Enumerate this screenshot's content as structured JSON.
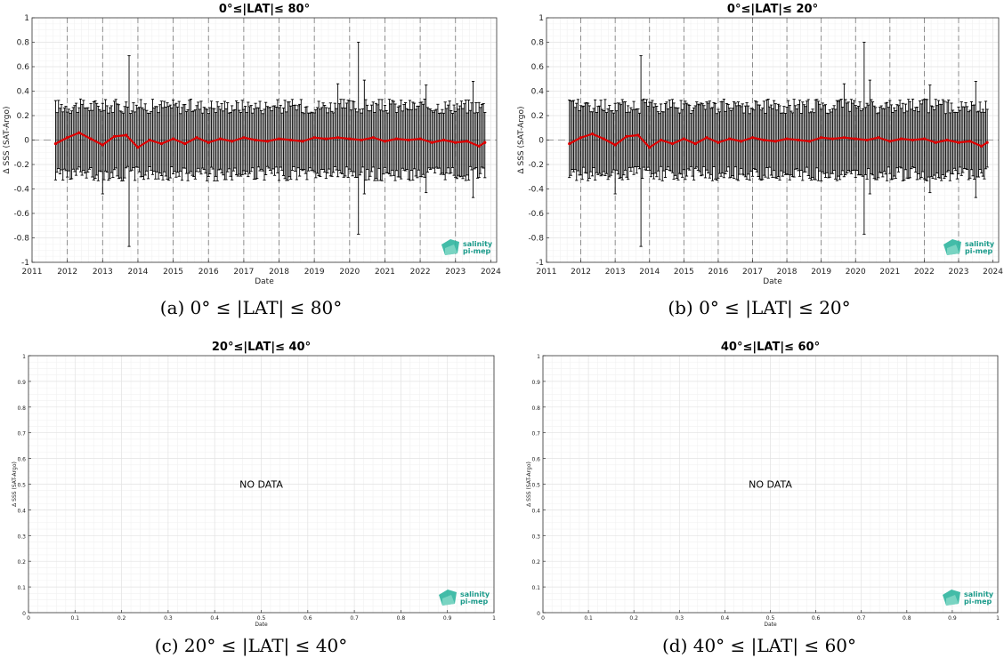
{
  "chart_data": [
    {
      "id": "a",
      "type": "line",
      "title": "0°≤|LAT|≤ 80°",
      "caption": "(a) 0° ≤ |LAT| ≤ 80°",
      "xlabel": "Date",
      "ylabel": "Δ SSS (SAT-Argo)",
      "xlim": [
        "2011-01-01",
        "2024-03-01"
      ],
      "ylim": [
        -1,
        1
      ],
      "xticks": [
        "2011",
        "2012",
        "2013",
        "2014",
        "2015",
        "2016",
        "2017",
        "2018",
        "2019",
        "2020",
        "2021",
        "2022",
        "2023",
        "2024"
      ],
      "yticks": [
        "-1",
        "-0.8",
        "-0.6",
        "-0.4",
        "-0.2",
        "0",
        "0.2",
        "0.4",
        "0.6",
        "0.8",
        "1"
      ],
      "grid": true,
      "series": [
        {
          "type": "errorbar",
          "color": "#000000",
          "start": "2011-09",
          "end": "2023-11",
          "typical_upper": 0.27,
          "typical_lower": -0.27,
          "outliers": [
            {
              "date": "2013-10",
              "upper": 0.69,
              "lower": -0.87
            },
            {
              "date": "2020-04",
              "upper": 0.8,
              "lower": -0.77
            },
            {
              "date": "2013-01",
              "upper": 0.3,
              "lower": -0.44
            },
            {
              "date": "2020-06",
              "upper": 0.49,
              "lower": -0.44
            },
            {
              "date": "2023-07",
              "upper": 0.48,
              "lower": -0.47
            },
            {
              "date": "2019-09",
              "upper": 0.46,
              "lower": -0.3
            },
            {
              "date": "2022-03",
              "upper": 0.45,
              "lower": -0.43
            }
          ]
        },
        {
          "type": "line",
          "color": "#dd0000",
          "x": [
            "2011-09",
            "2012-01",
            "2012-05",
            "2012-09",
            "2013-01",
            "2013-05",
            "2013-09",
            "2014-01",
            "2014-05",
            "2014-09",
            "2015-01",
            "2015-05",
            "2015-09",
            "2016-01",
            "2016-05",
            "2016-09",
            "2017-01",
            "2017-05",
            "2017-09",
            "2018-01",
            "2018-05",
            "2018-09",
            "2019-01",
            "2019-05",
            "2019-09",
            "2020-01",
            "2020-05",
            "2020-09",
            "2021-01",
            "2021-05",
            "2021-09",
            "2022-01",
            "2022-05",
            "2022-09",
            "2023-01",
            "2023-05",
            "2023-09",
            "2023-11"
          ],
          "y": [
            -0.03,
            0.02,
            0.06,
            0.01,
            -0.04,
            0.03,
            0.04,
            -0.06,
            0.0,
            -0.03,
            0.01,
            -0.03,
            0.02,
            -0.02,
            0.01,
            -0.01,
            0.02,
            0.0,
            -0.01,
            0.01,
            0.0,
            -0.01,
            0.02,
            0.01,
            0.02,
            0.01,
            0.0,
            0.02,
            -0.01,
            0.01,
            0.0,
            0.01,
            -0.02,
            0.0,
            -0.02,
            -0.01,
            -0.05,
            -0.02
          ]
        }
      ],
      "logo": {
        "line1": "salinity",
        "line2": "pi-mep"
      }
    },
    {
      "id": "b",
      "type": "line",
      "title": "0°≤|LAT|≤ 20°",
      "caption": "(b) 0° ≤ |LAT| ≤ 20°",
      "xlabel": "Date",
      "ylabel": "Δ SSS (SAT-Argo)",
      "xlim": [
        "2011-01-01",
        "2024-03-01"
      ],
      "ylim": [
        -1,
        1
      ],
      "xticks": [
        "2011",
        "2012",
        "2013",
        "2014",
        "2015",
        "2016",
        "2017",
        "2018",
        "2019",
        "2020",
        "2021",
        "2022",
        "2023",
        "2024"
      ],
      "yticks": [
        "-1",
        "-0.8",
        "-0.6",
        "-0.4",
        "-0.2",
        "0",
        "0.2",
        "0.4",
        "0.6",
        "0.8",
        "1"
      ],
      "grid": true,
      "series": [
        {
          "type": "errorbar",
          "color": "#000000",
          "start": "2011-09",
          "end": "2023-11",
          "typical_upper": 0.27,
          "typical_lower": -0.27,
          "outliers": [
            {
              "date": "2013-10",
              "upper": 0.69,
              "lower": -0.87
            },
            {
              "date": "2020-04",
              "upper": 0.8,
              "lower": -0.77
            },
            {
              "date": "2013-01",
              "upper": 0.3,
              "lower": -0.44
            },
            {
              "date": "2020-06",
              "upper": 0.49,
              "lower": -0.44
            },
            {
              "date": "2023-07",
              "upper": 0.48,
              "lower": -0.47
            },
            {
              "date": "2019-09",
              "upper": 0.46,
              "lower": -0.3
            },
            {
              "date": "2022-03",
              "upper": 0.45,
              "lower": -0.43
            }
          ]
        },
        {
          "type": "line",
          "color": "#dd0000",
          "x": [
            "2011-09",
            "2012-01",
            "2012-05",
            "2012-09",
            "2013-01",
            "2013-05",
            "2013-09",
            "2014-01",
            "2014-05",
            "2014-09",
            "2015-01",
            "2015-05",
            "2015-09",
            "2016-01",
            "2016-05",
            "2016-09",
            "2017-01",
            "2017-05",
            "2017-09",
            "2018-01",
            "2018-05",
            "2018-09",
            "2019-01",
            "2019-05",
            "2019-09",
            "2020-01",
            "2020-05",
            "2020-09",
            "2021-01",
            "2021-05",
            "2021-09",
            "2022-01",
            "2022-05",
            "2022-09",
            "2023-01",
            "2023-05",
            "2023-09",
            "2023-11"
          ],
          "y": [
            -0.03,
            0.02,
            0.05,
            0.01,
            -0.04,
            0.03,
            0.04,
            -0.06,
            0.0,
            -0.03,
            0.01,
            -0.03,
            0.02,
            -0.02,
            0.01,
            -0.01,
            0.02,
            0.0,
            -0.01,
            0.01,
            0.0,
            -0.01,
            0.02,
            0.01,
            0.02,
            0.01,
            0.0,
            0.02,
            -0.01,
            0.01,
            0.0,
            0.01,
            -0.02,
            0.0,
            -0.02,
            -0.01,
            -0.05,
            -0.02
          ]
        }
      ],
      "logo": {
        "line1": "salinity",
        "line2": "pi-mep"
      }
    },
    {
      "id": "c",
      "type": "line",
      "title": "20°≤|LAT|≤ 40°",
      "caption": "(c) 20° ≤ |LAT| ≤ 40°",
      "xlabel": "Date",
      "ylabel": "Δ SSS (SAT-Argo)",
      "xlim": [
        0,
        1
      ],
      "ylim": [
        0,
        1
      ],
      "xticks": [
        "0",
        "0.1",
        "0.2",
        "0.3",
        "0.4",
        "0.5",
        "0.6",
        "0.7",
        "0.8",
        "0.9",
        "1"
      ],
      "yticks": [
        "0",
        "0.1",
        "0.2",
        "0.3",
        "0.4",
        "0.5",
        "0.6",
        "0.7",
        "0.8",
        "0.9",
        "1"
      ],
      "grid": true,
      "annotation": "NO DATA",
      "series": [],
      "logo": {
        "line1": "salinity",
        "line2": "pi-mep"
      }
    },
    {
      "id": "d",
      "type": "line",
      "title": "40°≤|LAT|≤ 60°",
      "caption": "(d) 40° ≤ |LAT| ≤ 60°",
      "xlabel": "Date",
      "ylabel": "Δ SSS (SAT-Argo)",
      "xlim": [
        0,
        1
      ],
      "ylim": [
        0,
        1
      ],
      "xticks": [
        "0",
        "0.1",
        "0.2",
        "0.3",
        "0.4",
        "0.5",
        "0.6",
        "0.7",
        "0.8",
        "0.9",
        "1"
      ],
      "yticks": [
        "0",
        "0.1",
        "0.2",
        "0.3",
        "0.4",
        "0.5",
        "0.6",
        "0.7",
        "0.8",
        "0.9",
        "1"
      ],
      "grid": true,
      "annotation": "NO DATA",
      "series": [],
      "logo": {
        "line1": "salinity",
        "line2": "pi-mep"
      }
    }
  ]
}
